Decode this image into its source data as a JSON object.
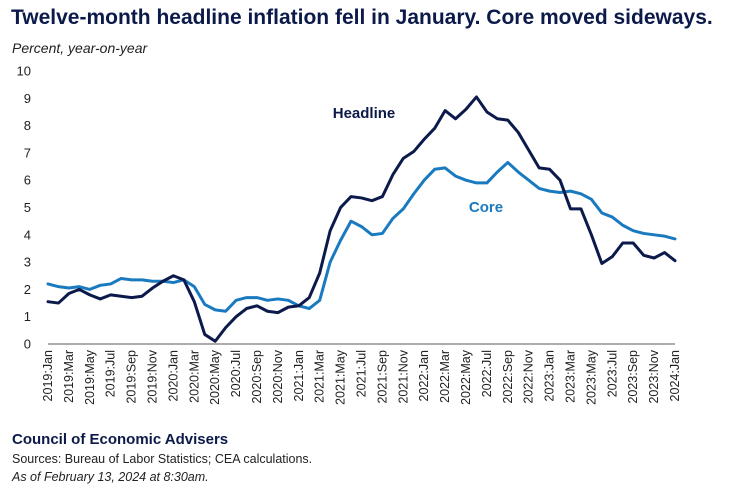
{
  "chart_data": {
    "type": "line",
    "title": "Twelve-month headline inflation fell in January. Core moved sideways.",
    "ylabel": "Percent, year-on-year",
    "xlabel": "",
    "ylim": [
      0,
      10
    ],
    "yticks": [
      0,
      1,
      2,
      3,
      4,
      5,
      6,
      7,
      8,
      9,
      10
    ],
    "grid": false,
    "tick_labels": [
      "2019:Jan",
      "2019:Mar",
      "2019:May",
      "2019:Jul",
      "2019:Sep",
      "2019:Nov",
      "2020:Jan",
      "2020:Mar",
      "2020:May",
      "2020:Jul",
      "2020:Sep",
      "2020:Nov",
      "2021:Jan",
      "2021:Mar",
      "2021:May",
      "2021:Jul",
      "2021:Sep",
      "2021:Nov",
      "2022:Jan",
      "2022:Mar",
      "2022:May",
      "2022:Jul",
      "2022:Sep",
      "2022:Nov",
      "2023:Jan",
      "2023:Mar",
      "2023:May",
      "2023:Jul",
      "2023:Sep",
      "2023:Nov",
      "2024:Jan"
    ],
    "series": [
      {
        "name": "Headline",
        "color": "#0b1a4a",
        "values": [
          1.55,
          1.5,
          1.85,
          2.0,
          1.8,
          1.65,
          1.8,
          1.75,
          1.7,
          1.75,
          2.05,
          2.3,
          2.5,
          2.35,
          1.55,
          0.35,
          0.1,
          0.6,
          1.0,
          1.3,
          1.4,
          1.2,
          1.15,
          1.35,
          1.4,
          1.7,
          2.6,
          4.15,
          5.0,
          5.4,
          5.35,
          5.25,
          5.4,
          6.2,
          6.8,
          7.05,
          7.5,
          7.9,
          8.55,
          8.25,
          8.6,
          9.05,
          8.5,
          8.25,
          8.2,
          7.75,
          7.1,
          6.45,
          6.4,
          6.0,
          4.95,
          4.95,
          4.0,
          2.95,
          3.2,
          3.7,
          3.7,
          3.25,
          3.15,
          3.35,
          3.05
        ]
      },
      {
        "name": "Core",
        "color": "#1a7ac0",
        "values": [
          2.2,
          2.1,
          2.05,
          2.1,
          2.0,
          2.15,
          2.2,
          2.4,
          2.35,
          2.35,
          2.3,
          2.3,
          2.25,
          2.35,
          2.1,
          1.45,
          1.25,
          1.2,
          1.6,
          1.7,
          1.7,
          1.6,
          1.65,
          1.6,
          1.4,
          1.3,
          1.6,
          3.0,
          3.8,
          4.5,
          4.3,
          4.0,
          4.05,
          4.6,
          4.95,
          5.5,
          6.0,
          6.4,
          6.45,
          6.15,
          6.0,
          5.9,
          5.9,
          6.3,
          6.65,
          6.3,
          6.0,
          5.7,
          5.6,
          5.55,
          5.6,
          5.5,
          5.3,
          4.8,
          4.65,
          4.35,
          4.15,
          4.05,
          4.0,
          3.95,
          3.85
        ]
      }
    ]
  },
  "source": {
    "org": "Council of Economic Advisers",
    "sources": "Sources: Bureau of Labor Statistics; CEA calculations.",
    "asof": "As of February 13, 2024 at 8:30am."
  }
}
